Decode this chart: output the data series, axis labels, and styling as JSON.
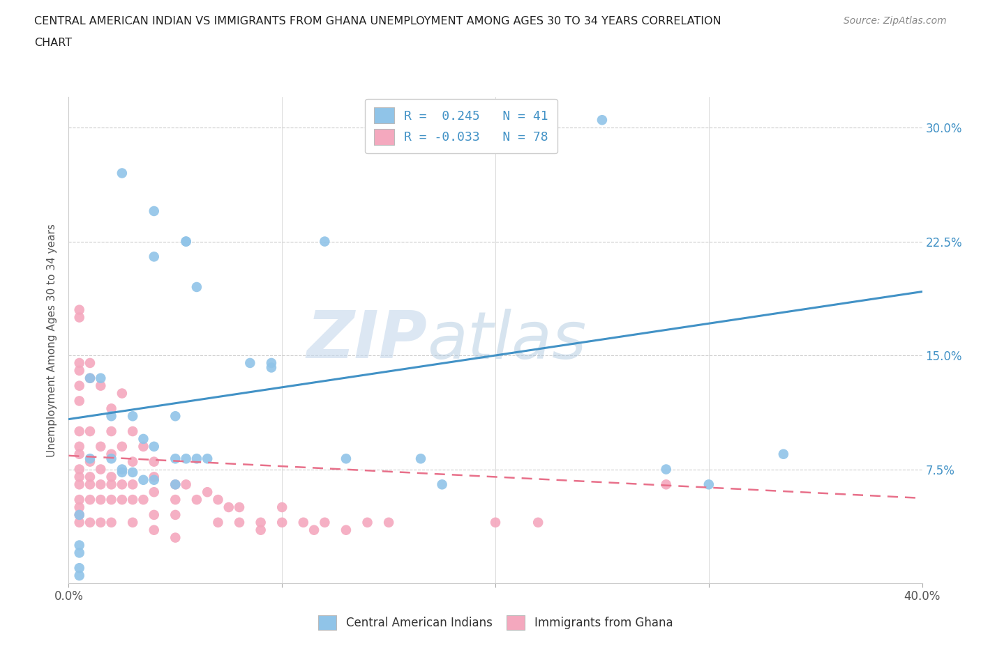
{
  "title_line1": "CENTRAL AMERICAN INDIAN VS IMMIGRANTS FROM GHANA UNEMPLOYMENT AMONG AGES 30 TO 34 YEARS CORRELATION",
  "title_line2": "CHART",
  "source": "Source: ZipAtlas.com",
  "ylabel": "Unemployment Among Ages 30 to 34 years",
  "xlim": [
    0.0,
    0.4
  ],
  "ylim": [
    0.0,
    0.32
  ],
  "x_ticks": [
    0.0,
    0.1,
    0.2,
    0.3,
    0.4
  ],
  "y_ticks": [
    0.0,
    0.075,
    0.15,
    0.225,
    0.3
  ],
  "y_tick_labels_right": [
    "",
    "7.5%",
    "15.0%",
    "22.5%",
    "30.0%"
  ],
  "hlines": [
    0.075,
    0.15,
    0.225,
    0.3
  ],
  "color_blue": "#90c4e8",
  "color_pink": "#f4a8be",
  "color_blue_line": "#4292c6",
  "color_pink_line": "#e8708a",
  "watermark_zip": "ZIP",
  "watermark_atlas": "atlas",
  "legend_label1": "Central American Indians",
  "legend_label2": "Immigrants from Ghana",
  "blue_scatter_x": [
    0.025,
    0.04,
    0.055,
    0.055,
    0.04,
    0.06,
    0.085,
    0.095,
    0.095,
    0.01,
    0.015,
    0.02,
    0.03,
    0.035,
    0.04,
    0.05,
    0.055,
    0.06,
    0.065,
    0.01,
    0.02,
    0.025,
    0.025,
    0.03,
    0.035,
    0.04,
    0.05,
    0.05,
    0.12,
    0.13,
    0.165,
    0.175,
    0.25,
    0.3,
    0.335,
    0.005,
    0.005,
    0.005,
    0.005,
    0.005,
    0.28
  ],
  "blue_scatter_y": [
    0.27,
    0.245,
    0.225,
    0.225,
    0.215,
    0.195,
    0.145,
    0.145,
    0.142,
    0.135,
    0.135,
    0.11,
    0.11,
    0.095,
    0.09,
    0.082,
    0.082,
    0.082,
    0.082,
    0.082,
    0.082,
    0.075,
    0.073,
    0.073,
    0.068,
    0.068,
    0.11,
    0.065,
    0.225,
    0.082,
    0.082,
    0.065,
    0.305,
    0.065,
    0.085,
    0.045,
    0.025,
    0.02,
    0.01,
    0.005,
    0.075
  ],
  "pink_scatter_x": [
    0.005,
    0.005,
    0.005,
    0.005,
    0.005,
    0.005,
    0.005,
    0.005,
    0.005,
    0.005,
    0.005,
    0.005,
    0.005,
    0.005,
    0.005,
    0.005,
    0.01,
    0.01,
    0.01,
    0.01,
    0.01,
    0.01,
    0.01,
    0.01,
    0.015,
    0.015,
    0.015,
    0.015,
    0.015,
    0.015,
    0.02,
    0.02,
    0.02,
    0.02,
    0.02,
    0.02,
    0.02,
    0.025,
    0.025,
    0.025,
    0.025,
    0.03,
    0.03,
    0.03,
    0.03,
    0.03,
    0.035,
    0.035,
    0.04,
    0.04,
    0.04,
    0.04,
    0.04,
    0.05,
    0.05,
    0.05,
    0.05,
    0.055,
    0.06,
    0.065,
    0.07,
    0.07,
    0.075,
    0.08,
    0.08,
    0.09,
    0.09,
    0.1,
    0.1,
    0.11,
    0.115,
    0.12,
    0.13,
    0.14,
    0.15,
    0.2,
    0.22,
    0.28
  ],
  "pink_scatter_y": [
    0.18,
    0.175,
    0.145,
    0.14,
    0.13,
    0.12,
    0.1,
    0.09,
    0.085,
    0.075,
    0.07,
    0.065,
    0.055,
    0.05,
    0.045,
    0.04,
    0.145,
    0.135,
    0.1,
    0.08,
    0.07,
    0.065,
    0.055,
    0.04,
    0.13,
    0.09,
    0.075,
    0.065,
    0.055,
    0.04,
    0.115,
    0.1,
    0.085,
    0.07,
    0.065,
    0.055,
    0.04,
    0.125,
    0.09,
    0.065,
    0.055,
    0.1,
    0.08,
    0.065,
    0.055,
    0.04,
    0.09,
    0.055,
    0.08,
    0.07,
    0.06,
    0.045,
    0.035,
    0.065,
    0.055,
    0.045,
    0.03,
    0.065,
    0.055,
    0.06,
    0.055,
    0.04,
    0.05,
    0.05,
    0.04,
    0.04,
    0.035,
    0.05,
    0.04,
    0.04,
    0.035,
    0.04,
    0.035,
    0.04,
    0.04,
    0.04,
    0.04,
    0.065
  ],
  "blue_line_x": [
    0.0,
    0.4
  ],
  "blue_line_y": [
    0.108,
    0.192
  ],
  "pink_line_x": [
    0.0,
    0.4
  ],
  "pink_line_y": [
    0.084,
    0.056
  ],
  "background_color": "#ffffff",
  "grid_color": "#cccccc"
}
